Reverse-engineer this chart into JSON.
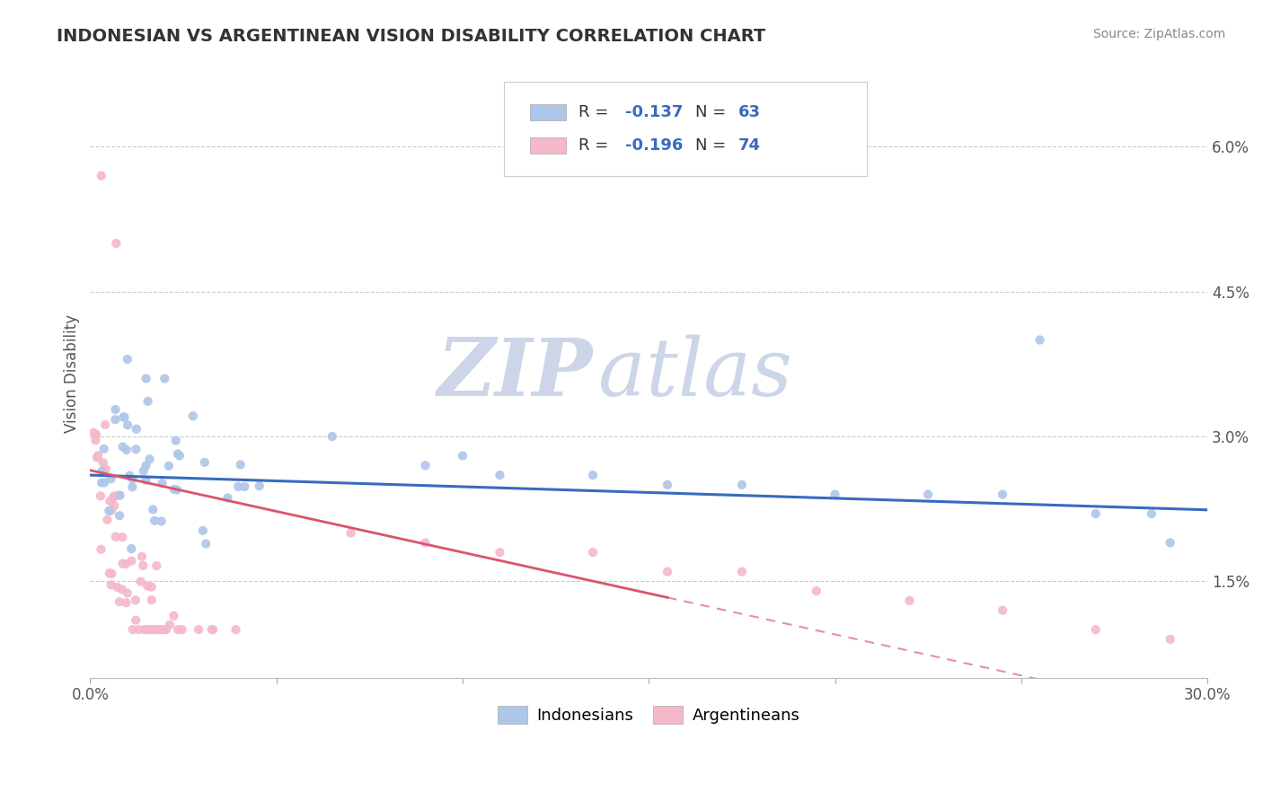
{
  "title": "INDONESIAN VS ARGENTINEAN VISION DISABILITY CORRELATION CHART",
  "source": "Source: ZipAtlas.com",
  "ylabel": "Vision Disability",
  "xlim": [
    0.0,
    0.3
  ],
  "ylim": [
    0.005,
    0.068
  ],
  "xtick_vals": [
    0.0,
    0.05,
    0.1,
    0.15,
    0.2,
    0.25,
    0.3
  ],
  "xticklabels": [
    "0.0%",
    "",
    "",
    "",
    "",
    "",
    "30.0%"
  ],
  "ytick_vals": [
    0.015,
    0.03,
    0.045,
    0.06
  ],
  "yticklabels": [
    "1.5%",
    "3.0%",
    "4.5%",
    "6.0%"
  ],
  "legend_label1": "Indonesians",
  "legend_label2": "Argentineans",
  "indonesian_color": "#aec6e8",
  "argentinean_color": "#f4b8c8",
  "indonesian_line_color": "#3a6abf",
  "argentinean_line_color": "#d9546e",
  "r_indonesian": -0.137,
  "n_indonesian": 63,
  "r_argentinean": -0.196,
  "n_argentinean": 74,
  "background_color": "#ffffff",
  "grid_color": "#cccccc",
  "watermark_zip": "ZIP",
  "watermark_atlas": "atlas",
  "watermark_color": "#ccd6e8",
  "stat_color": "#3a6abf",
  "stat_label_color": "#333333"
}
